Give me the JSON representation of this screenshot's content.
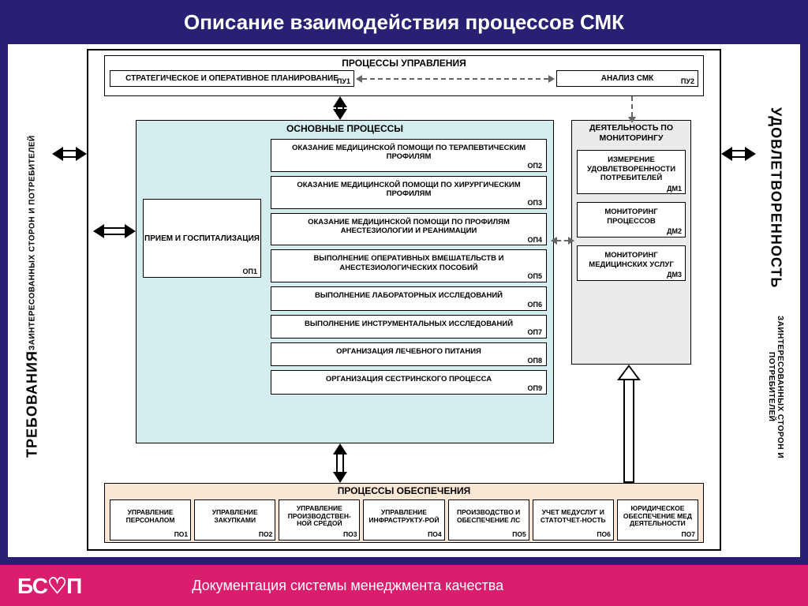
{
  "title": "Описание взаимодействия процессов СМК",
  "footer_text": "Документация системы менеджмента качества",
  "logo": "БС♡П",
  "side_left_big": "ТРЕБОВАНИЯ",
  "side_left_small": "ЗАИНТЕРЕСОВАННЫХ СТОРОН И ПОТРЕБИТЕЛЕЙ",
  "side_right_big": "УДОВЛЕТВОРЕННОСТЬ",
  "side_right_small": "ЗАИНТЕРЕСОВАННЫХ СТОРОН И ПОТРЕБИТЕЛЕЙ",
  "colors": {
    "page_bg": "#282073",
    "footer_bg": "#d91e6e",
    "main_proc_bg": "#d4eef0",
    "monitoring_bg": "#ebebeb",
    "support_bg": "#fbe8d4"
  },
  "management": {
    "title": "ПРОЦЕССЫ  УПРАВЛЕНИЯ",
    "pu1": {
      "label": "СТРАТЕГИЧЕСКОЕ И ОПЕРАТИВНОЕ ПЛАНИРОВАНИЕ",
      "code": "ПУ1"
    },
    "pu2": {
      "label": "АНАЛИЗ СМК",
      "code": "ПУ2"
    }
  },
  "main_processes": {
    "title": "ОСНОВНЫЕ ПРОЦЕССЫ",
    "op1": {
      "label": "ПРИЕМ И ГОСПИТАЛИЗАЦИЯ",
      "code": "ОП1"
    },
    "ops": [
      {
        "label": "ОКАЗАНИЕ МЕДИЦИНСКОЙ ПОМОЩИ ПО ТЕРАПЕВТИЧЕСКИМ ПРОФИЛЯМ",
        "code": "ОП2"
      },
      {
        "label": "ОКАЗАНИЕ МЕДИЦИНСКОЙ ПОМОЩИ ПО ХИРУРГИЧЕСКИМ  ПРОФИЛЯМ",
        "code": "ОП3"
      },
      {
        "label": "ОКАЗАНИЕ МЕДИЦИНСКОЙ ПОМОЩИ ПО ПРОФИЛЯМ АНЕСТЕЗИОЛОГИИ И РЕАНИМАЦИИ",
        "code": "ОП4"
      },
      {
        "label": "ВЫПОЛНЕНИЕ  ОПЕРАТИВНЫХ ВМЕШАТЕЛЬСТВ И АНЕСТЕЗИОЛОГИЧЕСКИХ ПОСОБИЙ",
        "code": "ОП5"
      },
      {
        "label": "ВЫПОЛНЕНИЕ ЛАБОРАТОРНЫХ ИССЛЕДОВАНИЙ",
        "code": "ОП6"
      },
      {
        "label": "ВЫПОЛНЕНИЕ ИНСТРУМЕНТАЛЬНЫХ ИССЛЕДОВАНИЙ",
        "code": "ОП7"
      },
      {
        "label": "ОРГАНИЗАЦИЯ ЛЕЧЕБНОГО ПИТАНИЯ",
        "code": "ОП8"
      },
      {
        "label": "ОРГАНИЗАЦИЯ СЕСТРИНСКОГО ПРОЦЕССА",
        "code": "ОП9"
      }
    ]
  },
  "monitoring": {
    "title": "ДЕЯТЕЛЬНОСТЬ ПО МОНИТОРИНГУ",
    "items": [
      {
        "label": "ИЗМЕРЕНИЕ УДОВЛЕТВОРЕННОСТИ ПОТРЕБИТЕЛЕЙ",
        "code": "ДМ1"
      },
      {
        "label": "МОНИТОРИНГ ПРОЦЕССОВ",
        "code": "ДМ2"
      },
      {
        "label": "МОНИТОРИНГ МЕДИЦИНСКИХ УСЛУГ",
        "code": "ДМ3"
      }
    ]
  },
  "support": {
    "title": "ПРОЦЕССЫ ОБЕСПЕЧЕНИЯ",
    "items": [
      {
        "label": "УПРАВЛЕНИЕ ПЕРСОНАЛОМ",
        "code": "ПО1"
      },
      {
        "label": "УПРАВЛЕНИЕ ЗАКУПКАМИ",
        "code": "ПО2"
      },
      {
        "label": "УПРАВЛЕНИЕ ПРОИЗВОДСТВЕН-НОЙ СРЕДОЙ",
        "code": "ПО3"
      },
      {
        "label": "УПРАВЛЕНИЕ ИНФРАСТРУКТУ-РОЙ",
        "code": "ПО4"
      },
      {
        "label": "ПРОИЗВОДСТВО И ОБЕСПЕЧЕНИЕ ЛС",
        "code": "ПО5"
      },
      {
        "label": "УЧЕТ МЕДУСЛУГ И СТАТОТЧЕТ-НОСТЬ",
        "code": "ПО6"
      },
      {
        "label": "ЮРИДИЧЕСКОЕ ОБЕСПЕЧЕНИЕ МЕД ДЕЯТЕЛЬНОСТИ",
        "code": "ПО7"
      }
    ]
  }
}
